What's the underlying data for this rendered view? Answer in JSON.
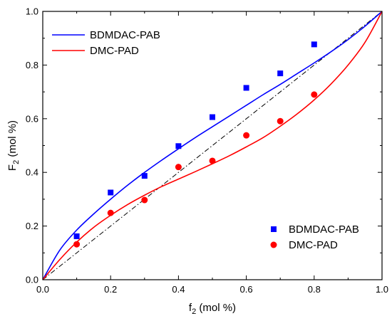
{
  "chart_data": {
    "type": "scatter",
    "xlabel": {
      "main": "f",
      "sub": "2",
      "unit": " (mol %)"
    },
    "ylabel": {
      "main": "F",
      "sub": "2",
      "unit": " (mol %)"
    },
    "xlim": [
      0.0,
      1.0
    ],
    "ylim": [
      0.0,
      1.0
    ],
    "xticks": [
      "0.0",
      "0.2",
      "0.4",
      "0.6",
      "0.8",
      "1.0"
    ],
    "yticks": [
      "0.0",
      "0.2",
      "0.4",
      "0.6",
      "0.8",
      "1.0"
    ],
    "grid": false,
    "legend_lines_position": "top-left",
    "legend_points_position": "bottom-right",
    "diagonal": {
      "style": "dash-dot",
      "color": "#000000",
      "points": [
        [
          0,
          0
        ],
        [
          1,
          1
        ]
      ]
    },
    "series": [
      {
        "name": "BDMDAC-PAB",
        "color": "#0000ff",
        "marker": "square",
        "points": [
          [
            0.1,
            0.162
          ],
          [
            0.2,
            0.325
          ],
          [
            0.3,
            0.387
          ],
          [
            0.4,
            0.498
          ],
          [
            0.5,
            0.606
          ],
          [
            0.6,
            0.715
          ],
          [
            0.7,
            0.769
          ],
          [
            0.8,
            0.877
          ]
        ]
      },
      {
        "name": "DMC-PAD",
        "color": "#ff0000",
        "marker": "circle",
        "points": [
          [
            0.1,
            0.132
          ],
          [
            0.2,
            0.249
          ],
          [
            0.3,
            0.297
          ],
          [
            0.4,
            0.42
          ],
          [
            0.5,
            0.443
          ],
          [
            0.6,
            0.538
          ],
          [
            0.7,
            0.591
          ],
          [
            0.8,
            0.69
          ]
        ]
      }
    ],
    "fits": [
      {
        "name": "BDMDAC-PAB",
        "color": "#0000ff",
        "points": [
          [
            0,
            0
          ],
          [
            0.05,
            0.11
          ],
          [
            0.1,
            0.185
          ],
          [
            0.15,
            0.245
          ],
          [
            0.2,
            0.3
          ],
          [
            0.25,
            0.352
          ],
          [
            0.3,
            0.4
          ],
          [
            0.35,
            0.445
          ],
          [
            0.4,
            0.488
          ],
          [
            0.45,
            0.53
          ],
          [
            0.5,
            0.57
          ],
          [
            0.55,
            0.61
          ],
          [
            0.6,
            0.65
          ],
          [
            0.65,
            0.69
          ],
          [
            0.7,
            0.728
          ],
          [
            0.75,
            0.768
          ],
          [
            0.8,
            0.808
          ],
          [
            0.85,
            0.85
          ],
          [
            0.9,
            0.895
          ],
          [
            0.95,
            0.945
          ],
          [
            1.0,
            1.0
          ]
        ]
      },
      {
        "name": "DMC-PAD",
        "color": "#ff0000",
        "points": [
          [
            0,
            0
          ],
          [
            0.05,
            0.075
          ],
          [
            0.1,
            0.14
          ],
          [
            0.15,
            0.195
          ],
          [
            0.2,
            0.24
          ],
          [
            0.25,
            0.28
          ],
          [
            0.3,
            0.315
          ],
          [
            0.35,
            0.347
          ],
          [
            0.4,
            0.375
          ],
          [
            0.45,
            0.403
          ],
          [
            0.5,
            0.432
          ],
          [
            0.55,
            0.462
          ],
          [
            0.6,
            0.495
          ],
          [
            0.65,
            0.53
          ],
          [
            0.7,
            0.572
          ],
          [
            0.75,
            0.618
          ],
          [
            0.8,
            0.67
          ],
          [
            0.85,
            0.73
          ],
          [
            0.9,
            0.8
          ],
          [
            0.95,
            0.885
          ],
          [
            1.0,
            1.0
          ]
        ]
      }
    ]
  }
}
